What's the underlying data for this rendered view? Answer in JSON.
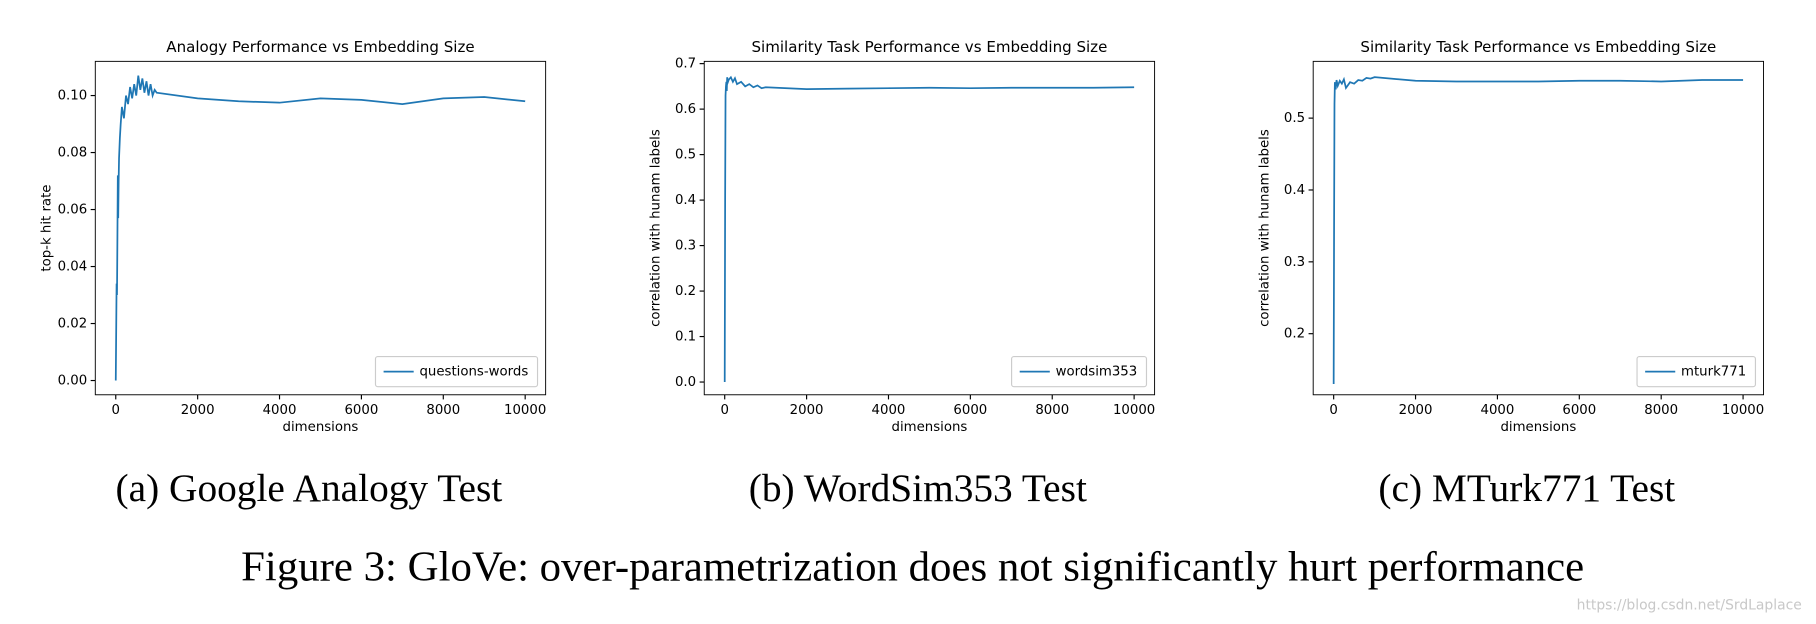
{
  "chart_data": [
    {
      "type": "line",
      "title": "Analogy Performance vs Embedding Size",
      "xlabel": "dimensions",
      "ylabel": "top-k hit rate",
      "caption": "(a) Google Analogy Test",
      "x": [
        0,
        10,
        20,
        30,
        40,
        50,
        60,
        70,
        80,
        100,
        120,
        150,
        200,
        250,
        300,
        350,
        400,
        450,
        500,
        550,
        600,
        650,
        700,
        750,
        800,
        850,
        900,
        950,
        1000,
        2000,
        3000,
        4000,
        5000,
        6000,
        7000,
        8000,
        9000,
        10000
      ],
      "series": [
        {
          "name": "questions-words",
          "color": "#1f77b4",
          "values": [
            0.0,
            0.017,
            0.034,
            0.03,
            0.05,
            0.072,
            0.057,
            0.07,
            0.078,
            0.085,
            0.09,
            0.096,
            0.092,
            0.1,
            0.097,
            0.103,
            0.099,
            0.104,
            0.1,
            0.107,
            0.102,
            0.106,
            0.101,
            0.105,
            0.1,
            0.104,
            0.1,
            0.102,
            0.101,
            0.099,
            0.098,
            0.0975,
            0.099,
            0.0985,
            0.097,
            0.099,
            0.0995,
            0.098
          ]
        }
      ],
      "xlim": [
        -500,
        10500
      ],
      "xticks": [
        0,
        2000,
        4000,
        6000,
        8000,
        10000
      ],
      "ylim": [
        -0.005,
        0.112
      ],
      "yticks": [
        {
          "value": 0,
          "label": "0.00"
        },
        0.02,
        0.04,
        0.06,
        0.08,
        {
          "value": 0.1,
          "label": "0.10"
        }
      ],
      "legend": "lower right"
    },
    {
      "type": "line",
      "title": "Similarity Task Performance vs Embedding Size",
      "xlabel": "dimensions",
      "ylabel": "correlation with hunam labels",
      "caption": "(b) WordSim353 Test",
      "x": [
        0,
        10,
        20,
        30,
        40,
        50,
        60,
        80,
        100,
        150,
        200,
        250,
        300,
        400,
        500,
        600,
        700,
        800,
        900,
        1000,
        2000,
        3000,
        4000,
        5000,
        6000,
        7000,
        8000,
        9000,
        10000
      ],
      "series": [
        {
          "name": "wordsim353",
          "color": "#1f77b4",
          "values": [
            0.0,
            0.4,
            0.63,
            0.65,
            0.66,
            0.64,
            0.67,
            0.66,
            0.665,
            0.67,
            0.66,
            0.668,
            0.655,
            0.66,
            0.65,
            0.655,
            0.648,
            0.652,
            0.646,
            0.648,
            0.644,
            0.645,
            0.646,
            0.647,
            0.646,
            0.647,
            0.647,
            0.647,
            0.648
          ]
        }
      ],
      "xlim": [
        -500,
        10500
      ],
      "xticks": [
        0,
        2000,
        4000,
        6000,
        8000,
        10000
      ],
      "ylim": [
        -0.028,
        0.705
      ],
      "yticks": [
        {
          "value": 0,
          "label": "0.0"
        },
        0.1,
        0.2,
        0.3,
        0.4,
        0.5,
        0.6,
        0.7
      ],
      "legend": "lower right"
    },
    {
      "type": "line",
      "title": "Similarity Task Performance vs Embedding Size",
      "xlabel": "dimensions",
      "ylabel": "correlation with hunam labels",
      "caption": "(c) MTurk771 Test",
      "x": [
        0,
        10,
        20,
        30,
        50,
        70,
        100,
        150,
        200,
        250,
        300,
        400,
        500,
        600,
        700,
        800,
        900,
        1000,
        2000,
        3000,
        4000,
        5000,
        6000,
        7000,
        8000,
        9000,
        10000
      ],
      "series": [
        {
          "name": "mturk771",
          "color": "#1f77b4",
          "values": [
            0.13,
            0.35,
            0.52,
            0.55,
            0.54,
            0.553,
            0.545,
            0.552,
            0.548,
            0.554,
            0.542,
            0.55,
            0.548,
            0.553,
            0.552,
            0.556,
            0.555,
            0.557,
            0.552,
            0.551,
            0.551,
            0.551,
            0.552,
            0.552,
            0.551,
            0.553,
            0.553
          ]
        }
      ],
      "xlim": [
        -500,
        10500
      ],
      "xticks": [
        0,
        2000,
        4000,
        6000,
        8000,
        10000
      ],
      "ylim": [
        0.115,
        0.579
      ],
      "yticks": [
        0.2,
        0.3,
        0.4,
        0.5
      ],
      "legend": "lower right"
    }
  ],
  "figure_caption": "Figure 3: GloVe: over-parametrization does not significantly hurt performance",
  "watermark": "https://blog.csdn.net/SrdLaplace"
}
